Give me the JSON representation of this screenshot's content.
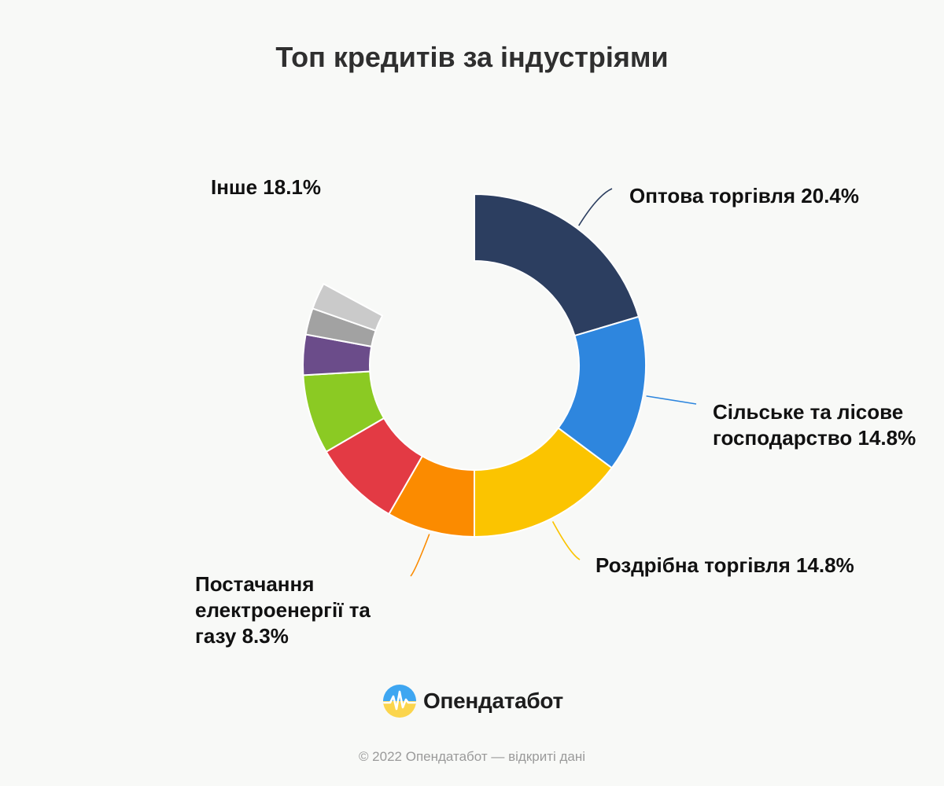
{
  "chart_data": {
    "type": "pie",
    "title": "Топ кредитів за індустріями",
    "hole": "donut",
    "labels": [
      "Оптова торгівля",
      "Сільське та лісове господарство",
      "Роздрібна торгівля",
      "Постачання електроенергії та газу",
      "",
      "",
      "",
      "",
      ""
    ],
    "values": [
      20.4,
      14.8,
      14.8,
      8.3,
      8.3,
      7.5,
      3.8,
      2.5,
      2.5
    ],
    "colors": [
      "#2c3e60",
      "#2e86de",
      "#fbc400",
      "#fb8b00",
      "#e33a44",
      "#8bca23",
      "#6b4c8a",
      "#a2a2a2",
      "#cacaca"
    ],
    "annotations": {
      "wholesale": "Оптова торгівля 20.4%",
      "agriculture": "Сільське та лісове господарство 14.8%",
      "retail": "Роздрібна торгівля 14.8%",
      "energy": "Постачання електроенергії та газу 8.3%",
      "other": "Інше 18.1%"
    }
  },
  "brand": {
    "name": "Опендатабот",
    "icon": "opendatabot-logo-icon"
  },
  "footer": {
    "text": "© 2022 Опендатабот — відкриті дані"
  }
}
